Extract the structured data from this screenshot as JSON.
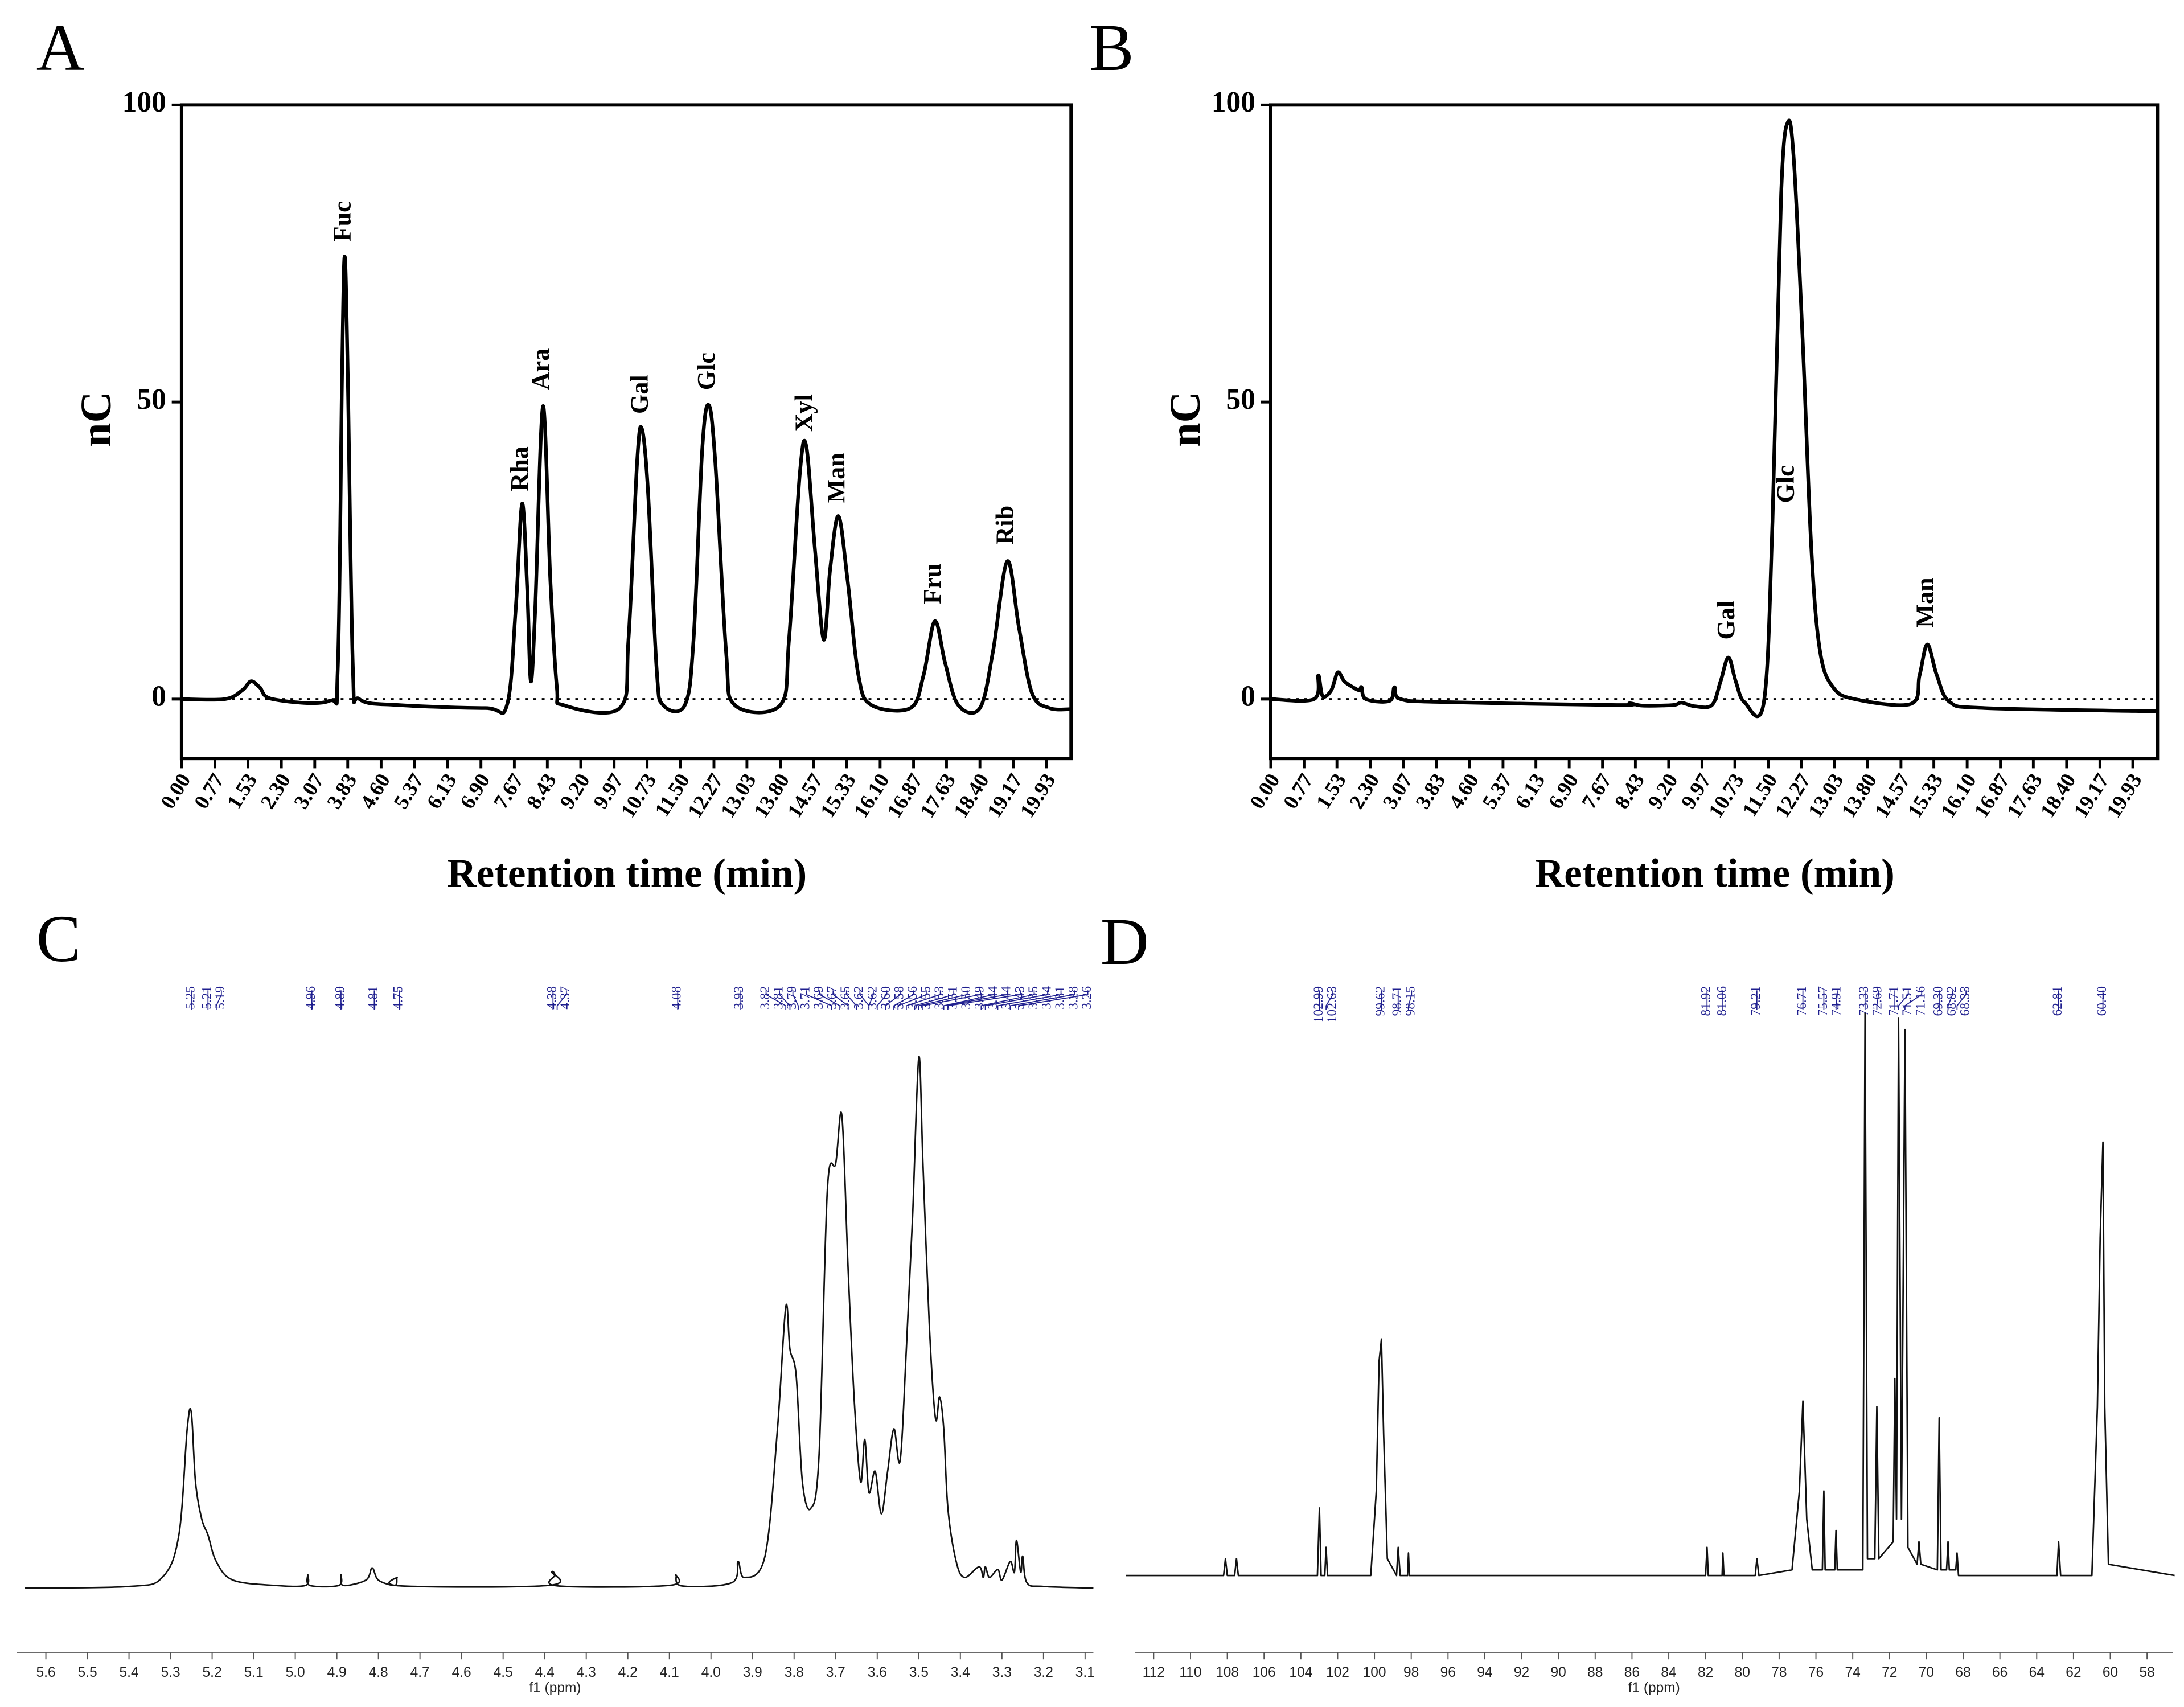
{
  "chart_data": [
    {
      "panel": "A",
      "type": "line",
      "y_label": "nC",
      "x_label": "Retention time (min)",
      "xlim": [
        0,
        20.5
      ],
      "ylim": [
        -10,
        100
      ],
      "xticks": [
        {
          "value": 0,
          "label": "0.00"
        },
        0.77,
        1.53,
        {
          "value": 2.3,
          "label": "2.30"
        },
        3.07,
        3.83,
        {
          "value": 4.6,
          "label": "4.60"
        },
        5.37,
        6.13,
        {
          "value": 6.9,
          "label": "6.90"
        },
        7.67,
        8.43,
        {
          "value": 9.2,
          "label": "9.20"
        },
        9.97,
        10.73,
        {
          "value": 11.5,
          "label": "11.50"
        },
        12.27,
        13.03,
        {
          "value": 13.8,
          "label": "13.80"
        },
        14.57,
        15.33,
        {
          "value": 16.1,
          "label": "16.10"
        },
        16.87,
        17.63,
        {
          "value": 18.4,
          "label": "18.40"
        },
        19.17,
        19.93
      ],
      "yticks": [
        0,
        50,
        100
      ],
      "reference_lines": [
        0
      ],
      "color": "#000000",
      "smooth": true,
      "x": [
        0,
        1.0,
        1.4,
        1.6,
        1.8,
        2.1,
        3.4,
        3.6,
        3.7,
        3.76,
        3.83,
        3.95,
        4.1,
        5,
        7,
        7.5,
        7.7,
        7.85,
        7.97,
        8.05,
        8.15,
        8.33,
        8.5,
        8.65,
        8.8,
        10.1,
        10.3,
        10.5,
        10.61,
        10.75,
        10.95,
        11.1,
        11.6,
        11.8,
        12.0,
        12.15,
        12.3,
        12.55,
        12.75,
        13.8,
        14.0,
        14.25,
        14.4,
        14.6,
        14.8,
        14.95,
        15.14,
        15.35,
        15.6,
        15.9,
        16.8,
        17.1,
        17.36,
        17.6,
        17.9,
        18.4,
        18.7,
        19.03,
        19.3,
        19.6,
        20,
        20.5
      ],
      "values": [
        0,
        0,
        1.5,
        3,
        2,
        0,
        -0.3,
        5,
        55,
        74.5,
        55,
        5,
        0,
        -1,
        -1.5,
        -1,
        15,
        32.9,
        18,
        3,
        15,
        49.3,
        20,
        2,
        -1,
        -1.5,
        10,
        40,
        45.5,
        35,
        5,
        -1,
        -1,
        10,
        42,
        49.5,
        40,
        8,
        -1,
        -1,
        10,
        38,
        42.5,
        25,
        10,
        22,
        30.8,
        20,
        4,
        -1,
        -1.5,
        4,
        13.1,
        6,
        -1,
        -1.5,
        8,
        23.2,
        12,
        1,
        -1.5,
        -1.7
      ],
      "annotations": [
        {
          "text": "Fuc",
          "x": 3.76,
          "y": 77
        },
        {
          "text": "Rha",
          "x": 7.85,
          "y": 35
        },
        {
          "text": "Ara",
          "x": 8.33,
          "y": 52
        },
        {
          "text": "Gal",
          "x": 10.61,
          "y": 48
        },
        {
          "text": "Glc",
          "x": 12.15,
          "y": 52
        },
        {
          "text": "Xyl",
          "x": 14.4,
          "y": 45
        },
        {
          "text": "Man",
          "x": 15.14,
          "y": 33
        },
        {
          "text": "Fru",
          "x": 17.36,
          "y": 16
        },
        {
          "text": "Rib",
          "x": 19.03,
          "y": 26
        }
      ]
    },
    {
      "panel": "B",
      "type": "line",
      "y_label": "nC",
      "x_label": "Retention time (min)",
      "xlim": [
        0,
        20.5
      ],
      "ylim": [
        -10,
        100
      ],
      "xticks": [
        {
          "value": 0,
          "label": "0.00"
        },
        0.77,
        1.53,
        {
          "value": 2.3,
          "label": "2.30"
        },
        3.07,
        3.83,
        {
          "value": 4.6,
          "label": "4.60"
        },
        5.37,
        6.13,
        {
          "value": 6.9,
          "label": "6.90"
        },
        7.67,
        8.43,
        {
          "value": 9.2,
          "label": "9.20"
        },
        9.97,
        10.73,
        {
          "value": 11.5,
          "label": "11.50"
        },
        12.27,
        13.03,
        {
          "value": 13.8,
          "label": "13.80"
        },
        14.57,
        15.33,
        {
          "value": 16.1,
          "label": "16.10"
        },
        16.87,
        17.63,
        {
          "value": 18.4,
          "label": "18.40"
        },
        19.17,
        19.93
      ],
      "yticks": [
        0,
        50,
        100
      ],
      "reference_lines": [
        0
      ],
      "color": "#000000",
      "smooth": true,
      "x": [
        0,
        1.0,
        1.1,
        1.2,
        1.4,
        1.55,
        1.7,
        1.9,
        2.05,
        2.1,
        2.2,
        2.75,
        2.86,
        3.0,
        4,
        8,
        8.3,
        8.6,
        9.3,
        9.5,
        9.8,
        10.2,
        10.4,
        10.58,
        10.75,
        10.95,
        11.4,
        11.6,
        11.8,
        11.96,
        12.1,
        12.3,
        12.5,
        12.7,
        13.0,
        13.5,
        14.8,
        15.0,
        15.18,
        15.4,
        15.7,
        16.5,
        20,
        20.5
      ],
      "values": [
        0,
        0,
        4,
        0.5,
        1.5,
        4.5,
        3,
        2,
        1.5,
        2,
        0,
        -0.3,
        2,
        0,
        -0.5,
        -1,
        -0.7,
        -1.1,
        -1,
        -0.6,
        -1.2,
        -1,
        3,
        7,
        3,
        -0.5,
        -0.5,
        30,
        85,
        97.2,
        90,
        60,
        25,
        8,
        2,
        0,
        -0.8,
        4,
        9.2,
        4,
        -0.5,
        -1.5,
        -2,
        -2
      ],
      "annotations": [
        {
          "text": "Gal",
          "x": 10.58,
          "y": 10
        },
        {
          "text": "Glc",
          "x": 11.96,
          "y": 33
        },
        {
          "text": "Man",
          "x": 15.18,
          "y": 12
        }
      ]
    },
    {
      "panel": "C",
      "type": "spectrum",
      "x_label": "f1 (ppm)",
      "xlim": [
        5.67,
        3.08
      ],
      "ylim": [
        0,
        100
      ],
      "xticks": [
        5.6,
        5.5,
        5.4,
        5.3,
        5.2,
        5.1,
        {
          "value": 5,
          "label": "5.0"
        },
        4.9,
        4.8,
        4.7,
        4.6,
        4.5,
        4.4,
        4.3,
        4.2,
        4.1,
        {
          "value": 4,
          "label": "4.0"
        },
        3.9,
        3.8,
        3.7,
        3.6,
        3.5,
        3.4,
        3.3,
        3.2,
        3.1
      ],
      "color": "#111111",
      "label_color": "#1f1f8f",
      "smooth": true,
      "x": [
        5.65,
        5.4,
        5.32,
        5.28,
        5.26,
        5.25,
        5.24,
        5.225,
        5.21,
        5.19,
        5.15,
        5.05,
        4.975,
        4.97,
        4.965,
        4.895,
        4.89,
        4.885,
        4.83,
        4.815,
        4.8,
        4.76,
        4.755,
        4.745,
        4.39,
        4.383,
        4.375,
        4.368,
        4.1,
        4.085,
        4.07,
        3.95,
        3.935,
        3.92,
        3.87,
        3.84,
        3.82,
        3.81,
        3.795,
        3.78,
        3.76,
        3.74,
        3.72,
        3.7,
        3.685,
        3.67,
        3.655,
        3.64,
        3.63,
        3.62,
        3.605,
        3.59,
        3.575,
        3.56,
        3.545,
        3.53,
        3.515,
        3.5,
        3.49,
        3.475,
        3.46,
        3.45,
        3.44,
        3.43,
        3.41,
        3.39,
        3.355,
        3.345,
        3.34,
        3.33,
        3.31,
        3.3,
        3.28,
        3.27,
        3.265,
        3.255,
        3.25,
        3.24,
        3.2,
        3.08
      ],
      "values": [
        0,
        0.3,
        2,
        10,
        30,
        33,
        20,
        13,
        10,
        5,
        1.5,
        0.5,
        0.5,
        2.5,
        0.5,
        0.5,
        2.5,
        0.5,
        1.5,
        3.8,
        1.5,
        0.5,
        2,
        0.4,
        0.5,
        3,
        2.5,
        0.4,
        0.5,
        2.5,
        0.4,
        1,
        5,
        2,
        6,
        30,
        53,
        45,
        40,
        20,
        15,
        25,
        75,
        80,
        89,
        60,
        35,
        20,
        28,
        18,
        22,
        14,
        22,
        30,
        24,
        45,
        70,
        100,
        80,
        50,
        32,
        36,
        30,
        15,
        5,
        2,
        4,
        2,
        4,
        2,
        3.5,
        1.5,
        5,
        3,
        9,
        3,
        6,
        1,
        0.3,
        0
      ],
      "peaks": [
        5.25,
        5.21,
        5.19,
        4.96,
        4.89,
        4.81,
        4.75,
        4.38,
        4.37,
        4.08,
        3.93,
        3.82,
        3.81,
        3.79,
        3.71,
        3.69,
        3.67,
        3.65,
        3.62,
        3.62,
        3.6,
        3.58,
        3.56,
        3.55,
        3.53,
        3.51,
        3.5,
        3.49,
        3.44,
        3.44,
        3.43,
        3.35,
        3.34,
        3.31,
        3.28,
        3.26
      ],
      "peak_labels": [
        "5.25",
        "5.21",
        "5.19",
        "4.96",
        "4.89",
        "4.81",
        "4.75",
        "4.38",
        "4.37",
        "4.08",
        "3.93",
        "3.82",
        "3.81",
        "3.79",
        "3.71",
        "3.69",
        "3.67",
        "3.65",
        "3.62",
        "3.62",
        "3.60",
        "3.58",
        "3.56",
        "3.55",
        "3.53",
        "3.51",
        "3.50",
        "3.49",
        "3.44",
        "3.44",
        "3.43",
        "3.35",
        "3.34",
        "3.31",
        "3.28",
        "3.26"
      ]
    },
    {
      "panel": "D",
      "type": "spectrum",
      "x_label": "f1 (ppm)",
      "xlim": [
        113,
        56.6
      ],
      "ylim": [
        0,
        100
      ],
      "xticks": [
        112,
        110,
        108,
        106,
        104,
        102,
        100,
        98,
        96,
        94,
        92,
        90,
        88,
        86,
        84,
        82,
        80,
        78,
        76,
        74,
        72,
        70,
        68,
        66,
        64,
        62,
        60,
        58
      ],
      "color": "#111111",
      "label_color": "#1f1f8f",
      "smooth": false,
      "x": [
        113.5,
        108.2,
        108.1,
        108.0,
        107.6,
        107.5,
        107.4,
        103.1,
        102.99,
        102.9,
        102.7,
        102.63,
        102.55,
        100.2,
        99.9,
        99.75,
        99.62,
        99.5,
        99.3,
        98.8,
        98.71,
        98.6,
        98.2,
        98.15,
        98.1,
        82.0,
        81.92,
        81.85,
        81.1,
        81.06,
        81.0,
        79.3,
        79.21,
        79.1,
        77.3,
        76.9,
        76.71,
        76.5,
        76.2,
        75.65,
        75.57,
        75.5,
        74.98,
        74.91,
        74.84,
        73.45,
        73.33,
        73.2,
        72.8,
        72.69,
        72.58,
        71.8,
        71.71,
        71.62,
        71.51,
        71.35,
        71.16,
        71.0,
        70.5,
        70.4,
        70.3,
        69.4,
        69.3,
        69.2,
        68.9,
        68.82,
        68.75,
        68.4,
        68.33,
        68.25,
        62.9,
        62.81,
        62.7,
        61.0,
        60.7,
        60.55,
        60.4,
        60.3,
        60.1,
        56.5
      ],
      "values": [
        0,
        0,
        3,
        0,
        0,
        3,
        0,
        0,
        12,
        0,
        0,
        5,
        0,
        0,
        15,
        38,
        42,
        25,
        3,
        0,
        5,
        0,
        0,
        4,
        0,
        0,
        5,
        0,
        0,
        4,
        0,
        0,
        3,
        0,
        1,
        15,
        31,
        10,
        1,
        1,
        15,
        1,
        1,
        8,
        1,
        1,
        100,
        3,
        3,
        30,
        3,
        6,
        35,
        10,
        99,
        10,
        97,
        5,
        2,
        6,
        2,
        1,
        28,
        1,
        1,
        6,
        1,
        1,
        4,
        0,
        0,
        6,
        0,
        0,
        30,
        60,
        77,
        30,
        2,
        0
      ],
      "peaks": [
        102.99,
        102.63,
        99.62,
        98.71,
        98.15,
        81.92,
        81.06,
        79.21,
        76.71,
        75.57,
        74.91,
        73.33,
        72.69,
        71.71,
        71.51,
        71.16,
        69.3,
        68.82,
        68.33,
        62.81,
        60.4
      ],
      "peak_labels": [
        "102.99",
        "102.63",
        "99.62",
        "98.71",
        "98.15",
        "81.92",
        "81.06",
        "79.21",
        "76.71",
        "75.57",
        "74.91",
        "73.33",
        "72.69",
        "71.71",
        "71.51",
        "71.16",
        "69.30",
        "68.82",
        "68.33",
        "62.81",
        "60.40"
      ]
    }
  ]
}
